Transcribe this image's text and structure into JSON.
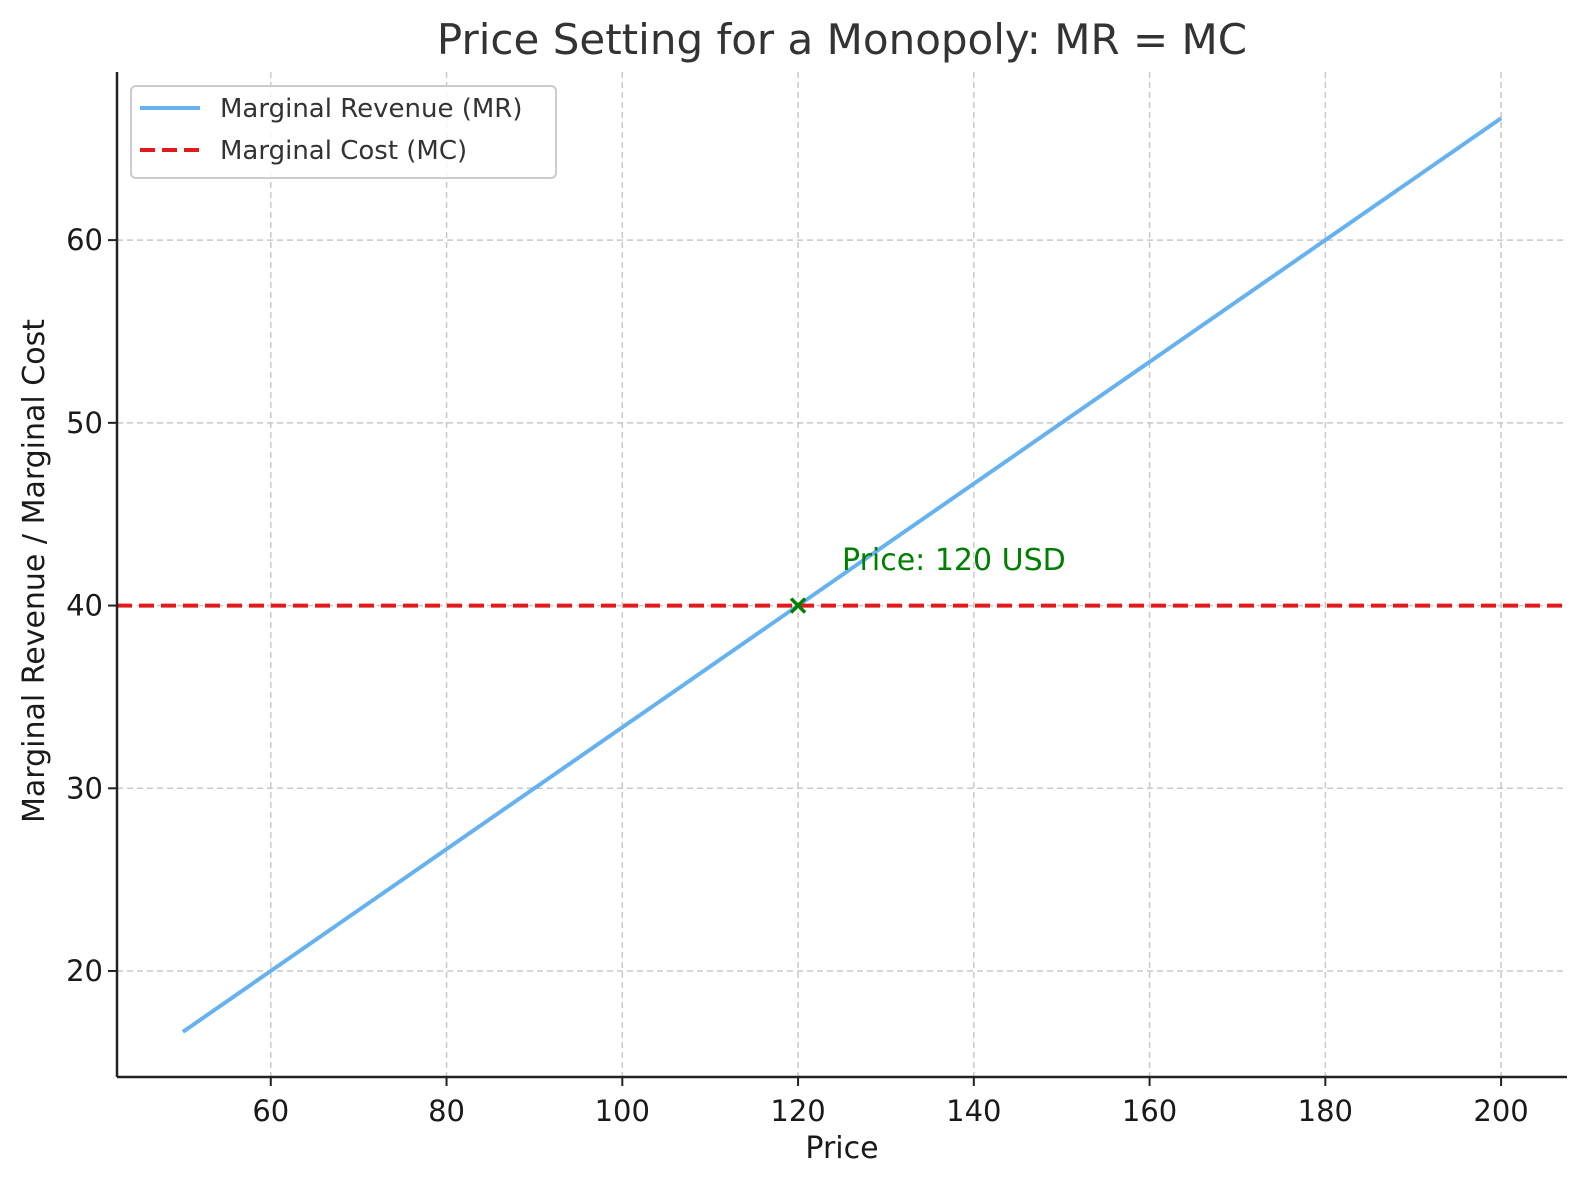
{
  "chart_data": {
    "type": "line",
    "title": "Price Setting for a Monopoly: MR = MC",
    "xlabel": "Price",
    "ylabel": "Marginal Revenue / Marginal Cost",
    "xlim": [
      42.5,
      207.5
    ],
    "ylim": [
      14.2,
      69.2
    ],
    "xticks": [
      60,
      80,
      100,
      120,
      140,
      160,
      180,
      200
    ],
    "yticks": [
      20,
      30,
      40,
      50,
      60
    ],
    "grid": true,
    "legend_position": "top-left",
    "series": [
      {
        "name": "Marginal Revenue (MR)",
        "style": "solid",
        "color": "#66b2f0",
        "x": [
          50,
          200
        ],
        "y": [
          16.67,
          66.67
        ]
      },
      {
        "name": "Marginal Cost (MC)",
        "style": "dashed",
        "color": "#e31a1c",
        "x": [
          42.5,
          207.5
        ],
        "y": [
          40,
          40
        ]
      }
    ],
    "marker": {
      "x": 120,
      "y": 40,
      "symbol": "x",
      "color": "#008000"
    },
    "annotation": {
      "text": "Price: 120 USD",
      "x": 125,
      "y": 42.5,
      "color": "#008000"
    }
  }
}
